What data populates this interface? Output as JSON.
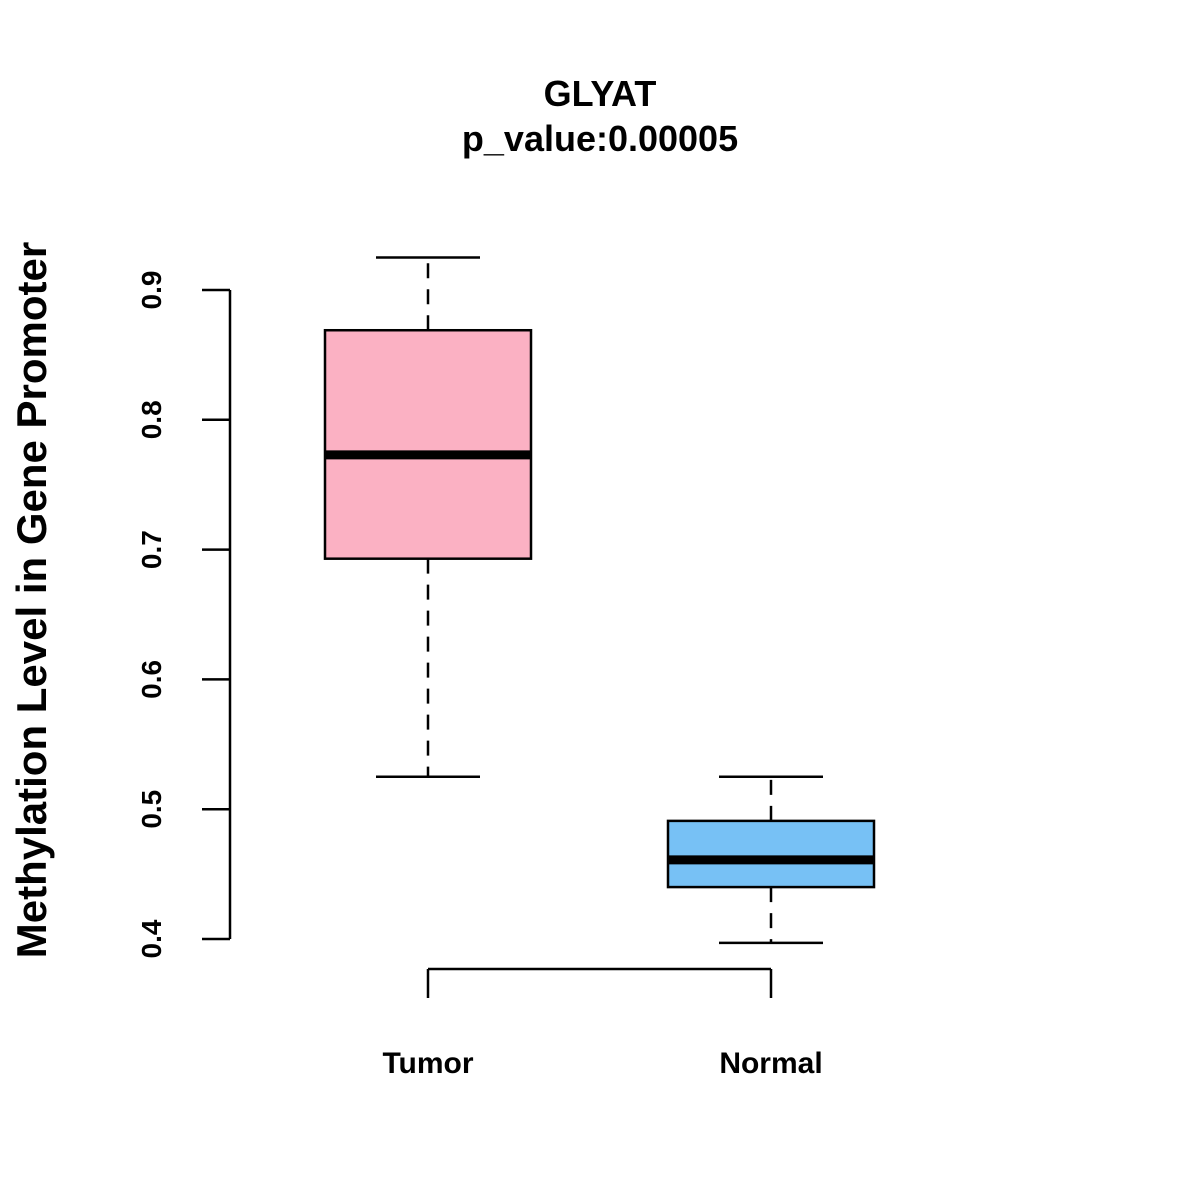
{
  "chart_data": {
    "type": "boxplot",
    "title": "GLYAT",
    "subtitle": "p_value:0.00005",
    "xlabel": "",
    "ylabel": "Methylation Level in Gene Promoter",
    "ylim": [
      0.4,
      0.9
    ],
    "yticks": [
      "0.4",
      "0.5",
      "0.6",
      "0.7",
      "0.8",
      "0.9"
    ],
    "grid": false,
    "categories": [
      "Tumor",
      "Normal"
    ],
    "boxes": [
      {
        "name": "Tumor",
        "whisker_low": 0.525,
        "q1": 0.693,
        "median": 0.773,
        "q3": 0.869,
        "whisker_high": 0.925,
        "color": "#FBB1C3"
      },
      {
        "name": "Normal",
        "whisker_low": 0.397,
        "q1": 0.44,
        "median": 0.461,
        "q3": 0.491,
        "whisker_high": 0.525,
        "color": "#77C1F5"
      }
    ]
  }
}
